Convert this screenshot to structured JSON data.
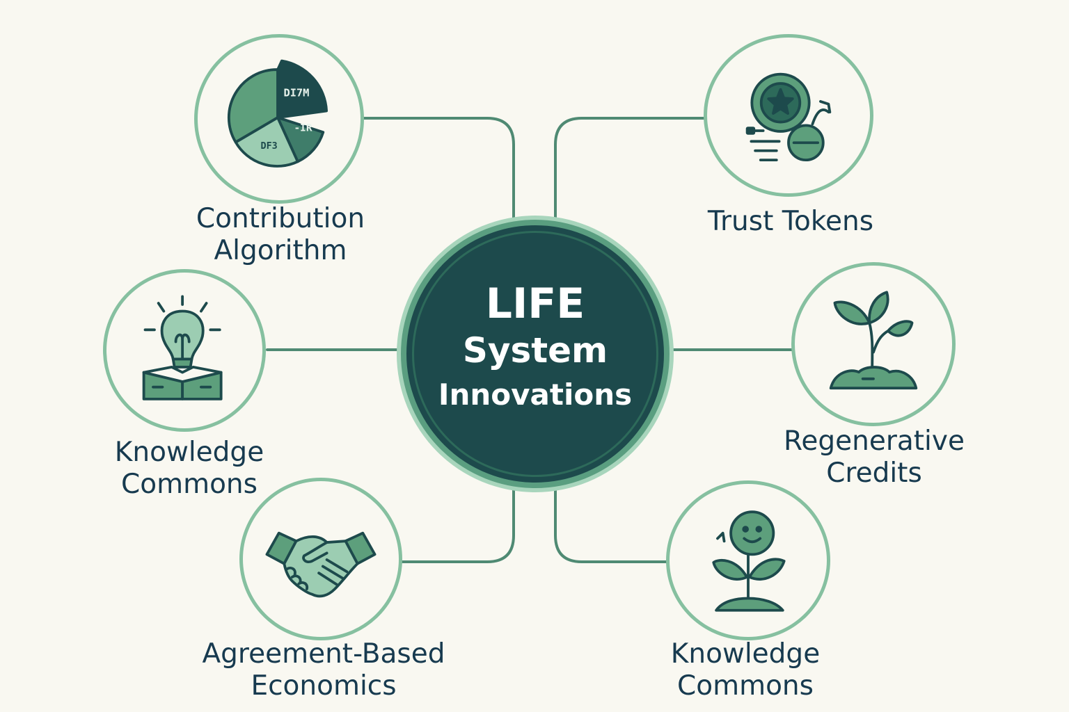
{
  "center": {
    "line1": "LIFE",
    "line2": "System",
    "line3": "Innovations"
  },
  "nodes": [
    {
      "id": "contribution-algorithm",
      "label_line1": "Contribution",
      "label_line2": "Algorithm",
      "icon": "pie-chart-icon",
      "pie_labels": [
        "DI7M",
        "-IR",
        "DF3"
      ]
    },
    {
      "id": "trust-tokens",
      "label_line1": "Trust Tokens",
      "icon": "token-coins-icon"
    },
    {
      "id": "knowledge-commons-left",
      "label_line1": "Knowledge",
      "label_line2": "Commons",
      "icon": "lightbulb-book-icon"
    },
    {
      "id": "regenerative-credits",
      "label_line1": "Regenerative",
      "label_line2": "Credits",
      "icon": "sprout-icon"
    },
    {
      "id": "agreement-based-economics",
      "label_line1": "Agreement-Based",
      "label_line2": "Economics",
      "icon": "handshake-icon"
    },
    {
      "id": "knowledge-commons-right",
      "label_line1": "Knowledge",
      "label_line2": "Commons",
      "icon": "smiling-flower-icon"
    }
  ],
  "colors": {
    "background": "#f9f8f1",
    "center_fill": "#1d4a4c",
    "ring": "#86c0a0",
    "connector": "#4f8a73",
    "icon_dark": "#1d4a4c",
    "icon_green": "#5d9f7c",
    "icon_light": "#9ccdb2",
    "label_text": "#173a4f"
  }
}
